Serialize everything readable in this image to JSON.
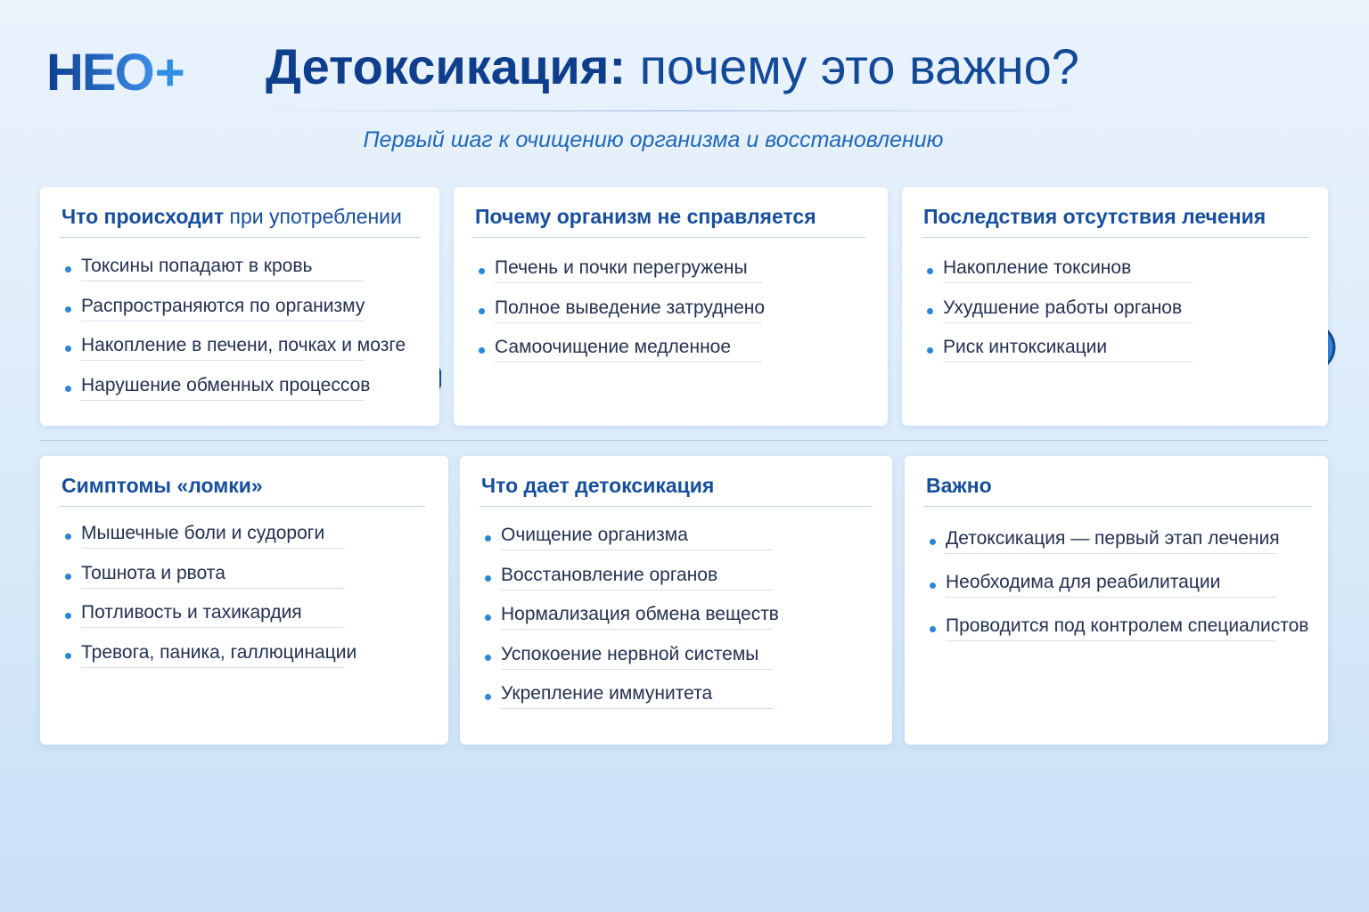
{
  "logo": {
    "text": "НЕО",
    "mark": "+"
  },
  "header": {
    "title_bold": "Детоксикация:",
    "title_rest": "почему это важно?",
    "subtitle": "Первый шаг к очищению организма и восстановлению"
  },
  "cards": [
    {
      "title": "Что происходит",
      "title_rest": "при употреблении",
      "items": [
        "Токсины попадают в кровь",
        "Распространяются по организму",
        "Накопление в печени, почках и мозге",
        "Нарушение обменных процессов"
      ]
    },
    {
      "title": "Почему организм не справляется",
      "items": [
        "Печень и почки перегружены",
        "Полное выведение затруднено",
        "Самоочищение медленное"
      ]
    },
    {
      "title": "Последствия отсутствия лечения",
      "items": [
        "Накопление токсинов",
        "Ухудшение работы органов",
        "Риск интоксикации"
      ]
    },
    {
      "title": "Симптомы «ломки»",
      "items": [
        "Мышечные боли и судороги",
        "Тошнота и рвота",
        "Потливость и тахикардия",
        "Тревога, паника, галлюцинации"
      ]
    },
    {
      "title": "Что дает детоксикация",
      "items": [
        "Очищение организма",
        "Восстановление органов",
        "Нормализация обмена веществ",
        "Успокоение нервной системы",
        "Укрепление иммунитета"
      ]
    },
    {
      "title": "Важно",
      "items": [
        "Детоксикация — первый этап лечения",
        "Необходима для реабилитации",
        "Проводится под контролем специалистов"
      ]
    }
  ]
}
